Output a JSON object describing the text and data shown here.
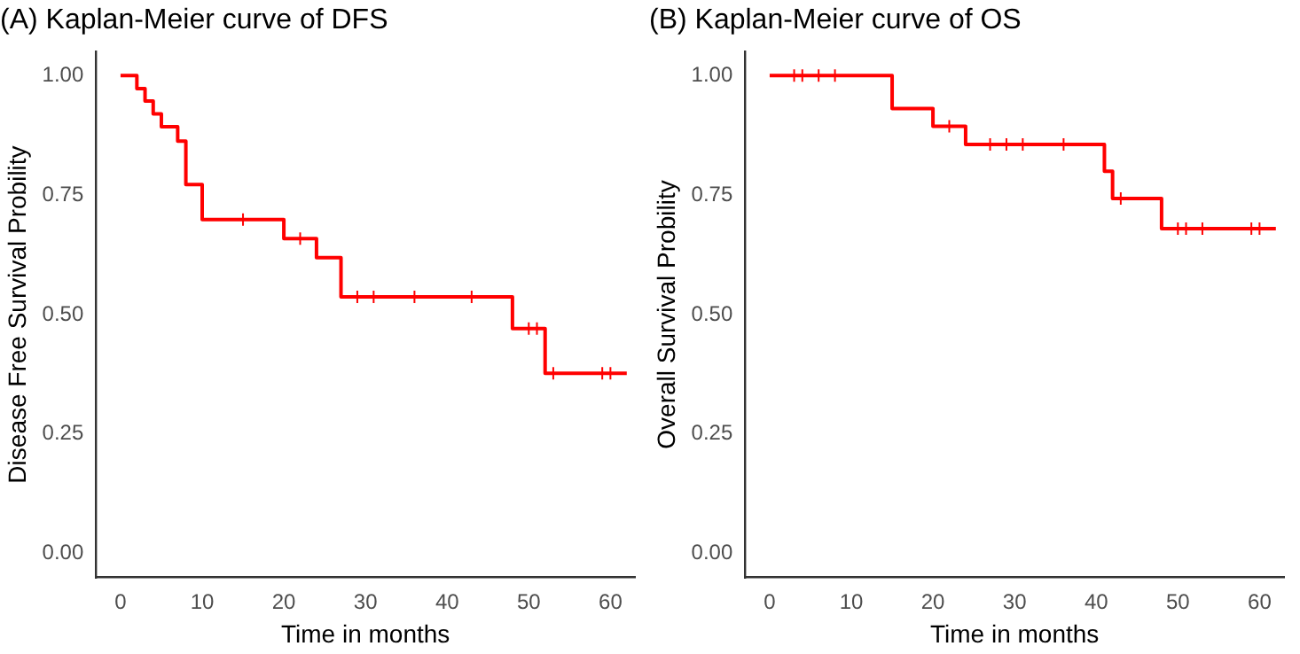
{
  "chart_data": [
    {
      "type": "step",
      "title": "(A) Kaplan-Meier curve of DFS",
      "xlabel": "Time in months",
      "ylabel": "Disease Free Survival Probility",
      "xlim": [
        -3,
        63
      ],
      "xticks": [
        0,
        10,
        20,
        30,
        40,
        50,
        60
      ],
      "ylim": [
        -0.05,
        1.05
      ],
      "yticks": [
        {
          "value": 0,
          "label": "0.00"
        },
        {
          "value": 0.25,
          "label": "0.25"
        },
        {
          "value": 0.5,
          "label": "0.50"
        },
        {
          "value": 0.75,
          "label": "0.75"
        },
        {
          "value": 1,
          "label": "1.00"
        }
      ],
      "grid": false,
      "legend": false,
      "series": [
        {
          "color": "#ff0000",
          "x": [
            0,
            2,
            3,
            4,
            5,
            7,
            8,
            10,
            20,
            24,
            27,
            48,
            52,
            62
          ],
          "values": [
            1,
            0.973,
            0.947,
            0.92,
            0.893,
            0.863,
            0.772,
            0.699,
            0.659,
            0.619,
            0.537,
            0.471,
            0.377,
            0.377
          ]
        },
        {
          "type": "scatter",
          "marker": "cross",
          "color": "#ff0000",
          "x": [
            15,
            22,
            29,
            31,
            36,
            43,
            50,
            51,
            53,
            59,
            60
          ],
          "values": [
            0.699,
            0.659,
            0.537,
            0.537,
            0.537,
            0.537,
            0.471,
            0.471,
            0.377,
            0.377,
            0.377
          ]
        }
      ]
    },
    {
      "type": "step",
      "title": "(B) Kaplan-Meier curve of OS",
      "xlabel": "Time in months",
      "ylabel": "Overall Survival Probility",
      "xlim": [
        -3,
        63
      ],
      "xticks": [
        0,
        10,
        20,
        30,
        40,
        50,
        60
      ],
      "ylim": [
        -0.05,
        1.05
      ],
      "yticks": [
        {
          "value": 0,
          "label": "0.00"
        },
        {
          "value": 0.25,
          "label": "0.25"
        },
        {
          "value": 0.5,
          "label": "0.50"
        },
        {
          "value": 0.75,
          "label": "0.75"
        },
        {
          "value": 1,
          "label": "1.00"
        }
      ],
      "grid": false,
      "legend": false,
      "series": [
        {
          "color": "#ff0000",
          "x": [
            0,
            15,
            20,
            24,
            41,
            42,
            48,
            62
          ],
          "values": [
            1,
            0.931,
            0.894,
            0.856,
            0.8,
            0.743,
            0.68,
            0.68
          ]
        },
        {
          "type": "scatter",
          "marker": "cross",
          "color": "#ff0000",
          "x": [
            3,
            4,
            6,
            8,
            22,
            27,
            29,
            31,
            36,
            43,
            50,
            51,
            53,
            59,
            60
          ],
          "values": [
            1,
            1,
            1,
            1,
            0.894,
            0.856,
            0.856,
            0.856,
            0.856,
            0.743,
            0.68,
            0.68,
            0.68,
            0.68,
            0.68
          ]
        }
      ]
    }
  ]
}
